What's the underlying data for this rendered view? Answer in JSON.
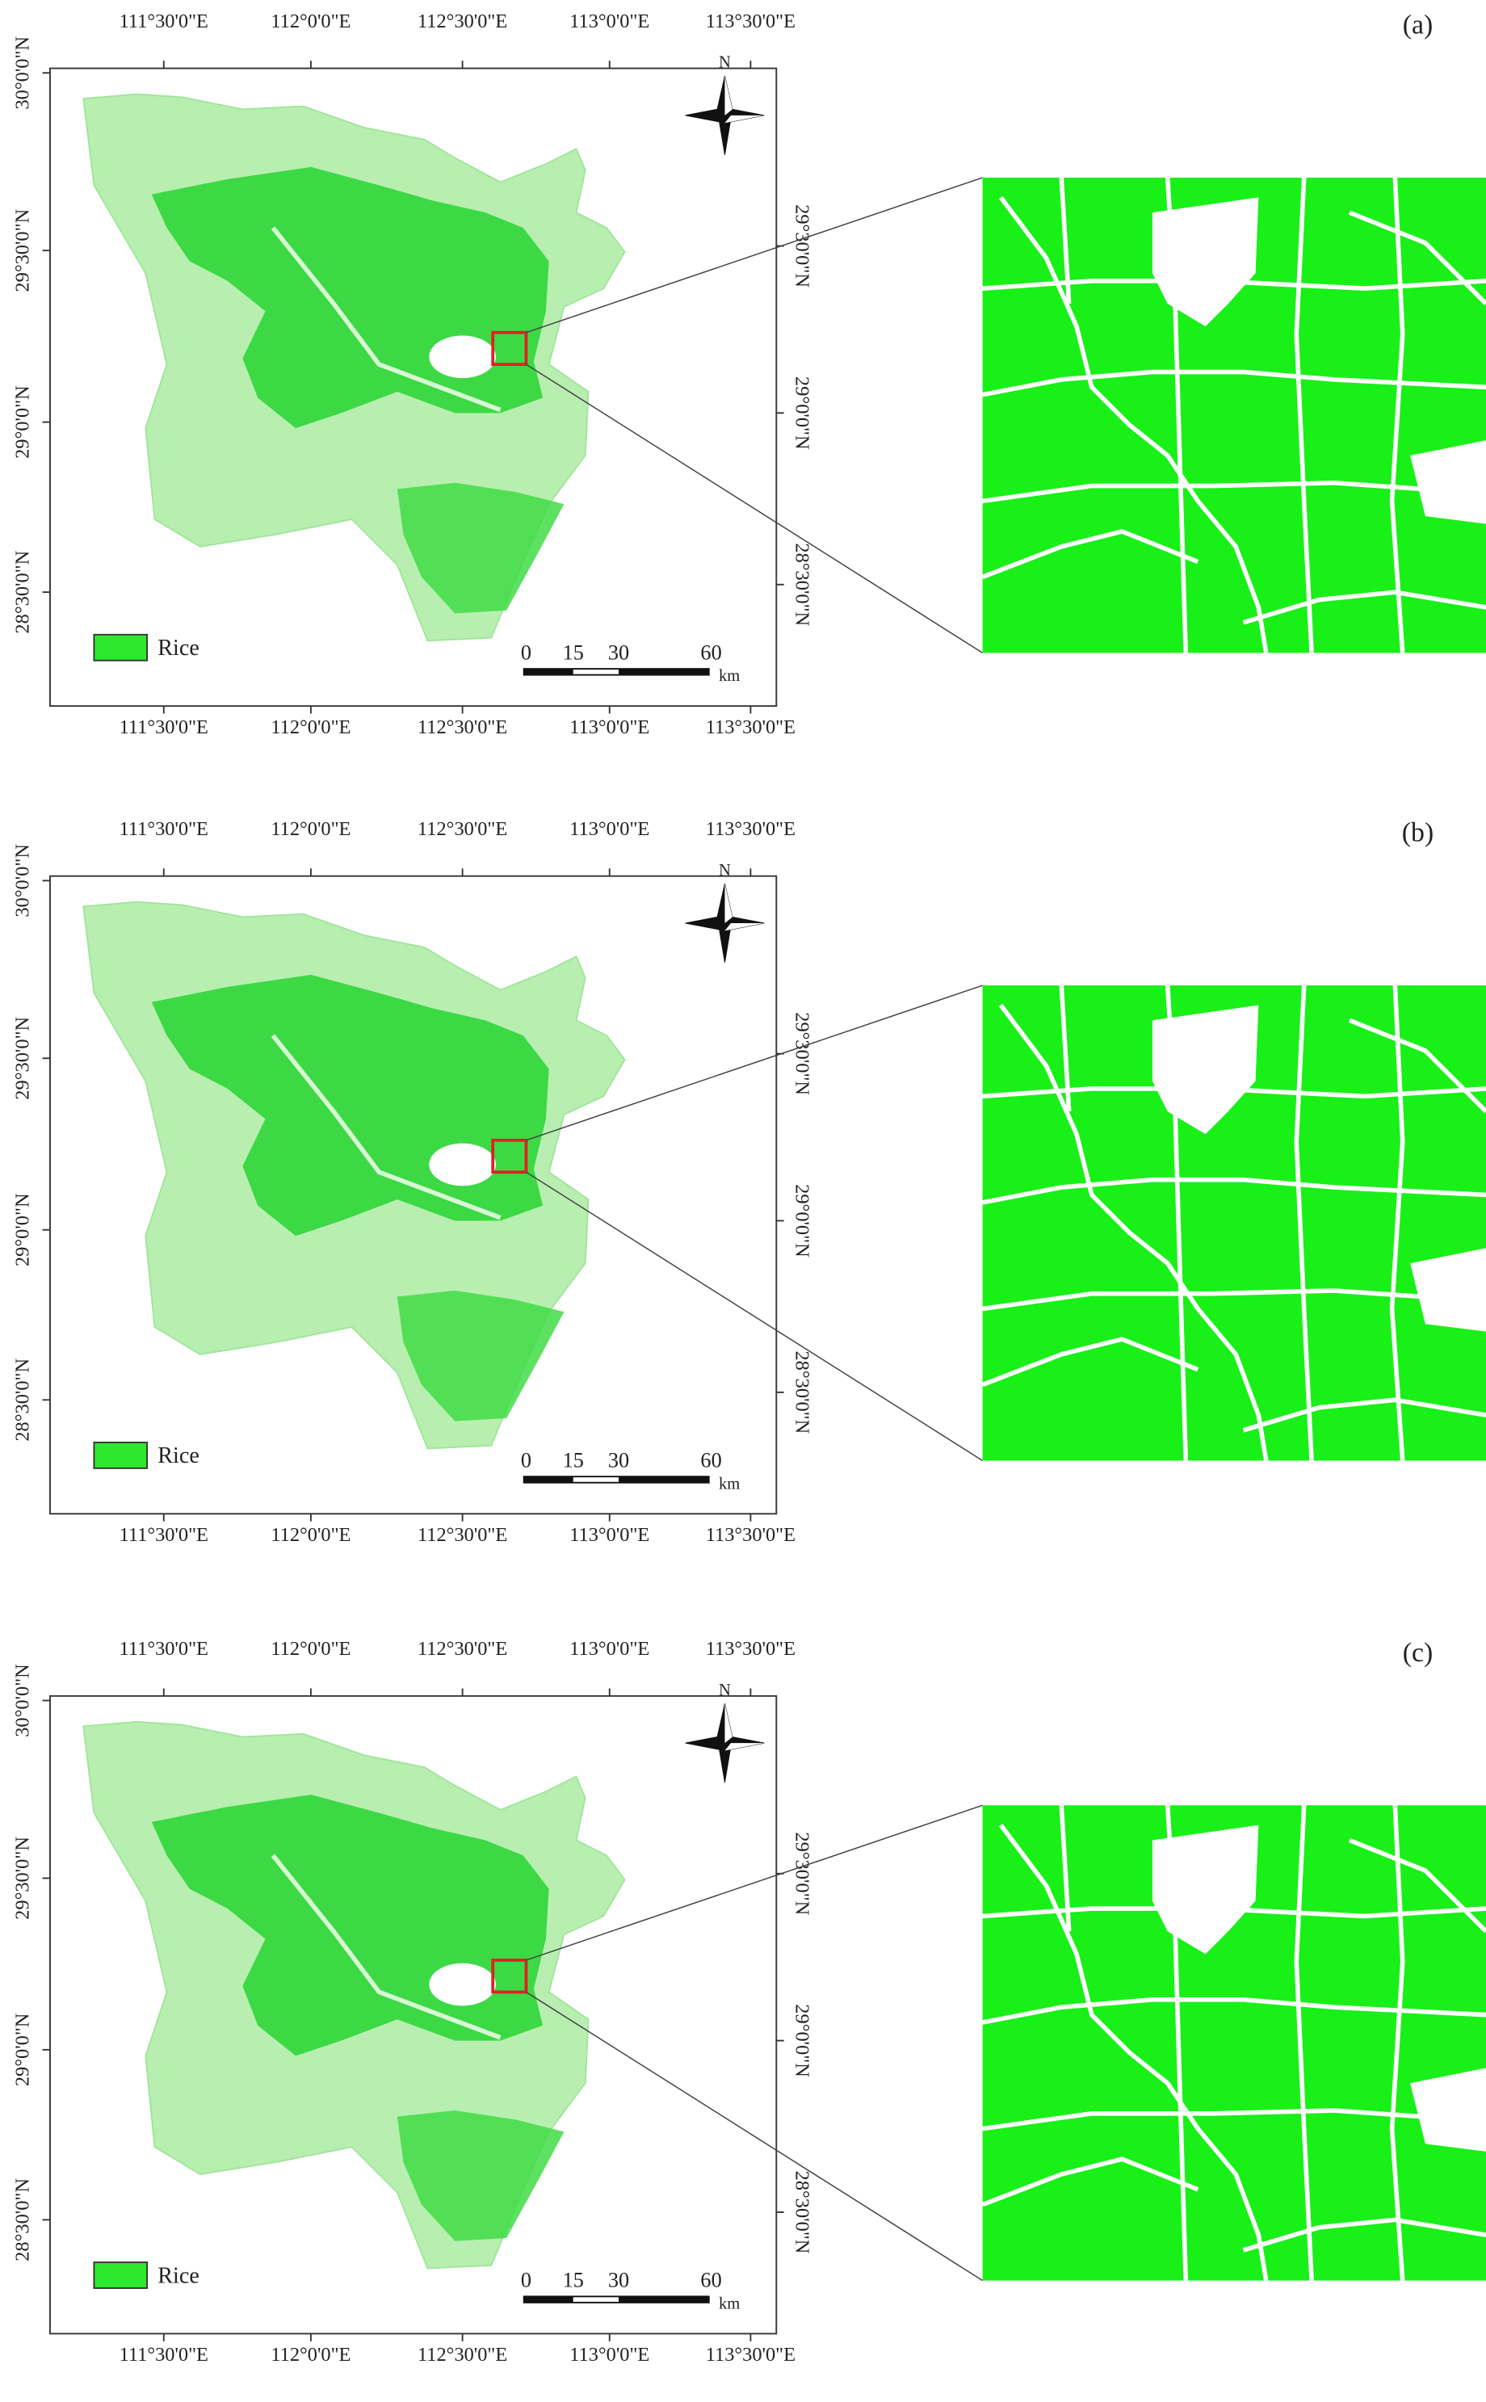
{
  "figure": {
    "panels": [
      {
        "label": "(a)",
        "x_labels_top": [
          "111°30'0\"E",
          "112°0'0\"E",
          "112°30'0\"E",
          "113°0'0\"E",
          "113°30'0\"E"
        ],
        "x_labels_bottom": [
          "111°30'0\"E",
          "112°0'0\"E",
          "112°30'0\"E",
          "113°0'0\"E",
          "113°30'0\"E"
        ],
        "y_labels_left": [
          "30°0'0\"N",
          "29°30'0\"N",
          "29°0'0\"N",
          "28°30'0\"N"
        ],
        "y_labels_right": [
          "29°30'0\"N",
          "29°0'0\"N",
          "28°30'0\"N"
        ],
        "north": "N",
        "legend": "Rice",
        "scale_labels": [
          "0",
          "15",
          "30",
          "60"
        ],
        "scale_unit": "km"
      },
      {
        "label": "(b)",
        "x_labels_top": [
          "111°30'0\"E",
          "112°0'0\"E",
          "112°30'0\"E",
          "113°0'0\"E",
          "113°30'0\"E"
        ],
        "x_labels_bottom": [
          "111°30'0\"E",
          "112°0'0\"E",
          "112°30'0\"E",
          "113°0'0\"E",
          "113°30'0\"E"
        ],
        "y_labels_left": [
          "30°0'0\"N",
          "29°30'0\"N",
          "29°0'0\"N",
          "28°30'0\"N"
        ],
        "y_labels_right": [
          "29°30'0\"N",
          "29°0'0\"N",
          "28°30'0\"N"
        ],
        "north": "N",
        "legend": "Rice",
        "scale_labels": [
          "0",
          "15",
          "30",
          "60"
        ],
        "scale_unit": "km"
      },
      {
        "label": "(c)",
        "x_labels_top": [
          "111°30'0\"E",
          "112°0'0\"E",
          "112°30'0\"E",
          "113°0'0\"E",
          "113°30'0\"E"
        ],
        "x_labels_bottom": [
          "111°30'0\"E",
          "112°0'0\"E",
          "112°30'0\"E",
          "113°0'0\"E",
          "113°30'0\"E"
        ],
        "y_labels_left": [
          "30°0'0\"N",
          "29°30'0\"N",
          "29°0'0\"N",
          "28°30'0\"N"
        ],
        "y_labels_right": [
          "29°30'0\"N",
          "29°0'0\"N",
          "28°30'0\"N"
        ],
        "north": "N",
        "legend": "Rice",
        "scale_labels": [
          "0",
          "15",
          "30",
          "60"
        ],
        "scale_unit": "km"
      }
    ]
  }
}
